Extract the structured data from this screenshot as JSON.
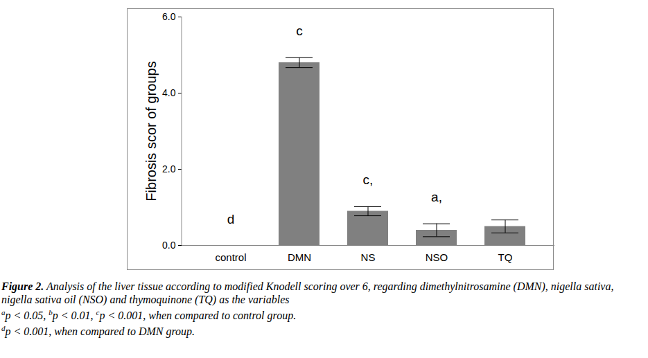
{
  "chart_data": {
    "type": "bar",
    "categories": [
      "control",
      "DMN",
      "NS",
      "NSO",
      "TQ"
    ],
    "values": [
      0,
      4.8,
      0.9,
      0.4,
      0.5
    ],
    "errors": [
      0,
      0.13,
      0.12,
      0.17,
      0.17
    ],
    "color": "#808080",
    "ylabel": "Fibrosis scor of groups",
    "ylim": [
      0,
      6
    ],
    "yticks": [
      0,
      2,
      4,
      6
    ],
    "grid": false,
    "annotations": [
      {
        "category": "control",
        "text": "d"
      },
      {
        "category": "DMN",
        "text": "c"
      },
      {
        "category": "NS",
        "text": "c,"
      },
      {
        "category": "NSO",
        "text": "a,"
      }
    ],
    "caption": {
      "label": "Figure 2.",
      "text": "Analysis of the liver tissue according to modified Knodell scoring over 6, regarding dimethylnitrosamine (DMN), nigella sativa, nigella sativa oil (NSO) and thymoquinone (TQ) as the variables",
      "notes": [
        [
          {
            "sup": "a",
            "text": "p < 0.05, "
          },
          {
            "sup": "b",
            "text": "p < 0.01, "
          },
          {
            "sup": "c",
            "text": "p < 0.001, when compared to control group."
          }
        ],
        [
          {
            "sup": "d",
            "text": "p < 0.001, when compared to DMN group."
          }
        ]
      ]
    }
  }
}
